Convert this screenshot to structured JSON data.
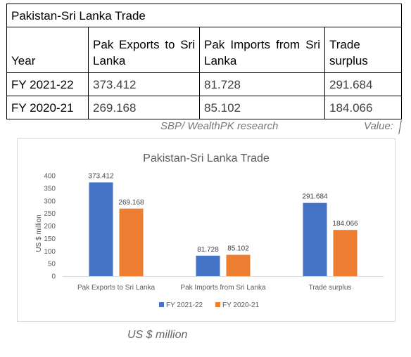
{
  "table": {
    "title": "Pakistan-Sri Lanka Trade",
    "headers": [
      "Year",
      "Pak Exports to Sri Lanka",
      "Pak Imports from Sri Lanka",
      "Trade surplus"
    ],
    "rows": [
      [
        "FY 2021-22",
        "373.412",
        "81.728",
        "291.684"
      ],
      [
        "FY 2020-21",
        "269.168",
        "85.102",
        "184.066"
      ]
    ]
  },
  "source_note": "SBP/ WealthPK research",
  "value_label": "Value:",
  "unit_note": "US $ million",
  "colors": {
    "fy2021_22": "#4472c4",
    "fy2020_21": "#ed7d31"
  },
  "chart_data": {
    "type": "bar",
    "title": "Pakistan-Sri Lanka Trade",
    "categories": [
      "Pak Exports to Sri Lanka",
      "Pak Imports from Sri Lanka",
      "Trade surplus"
    ],
    "series": [
      {
        "name": "FY 2021-22",
        "values": [
          373.412,
          81.728,
          291.684
        ],
        "labels": [
          "373.412",
          "81.728",
          "291.684"
        ]
      },
      {
        "name": "FY 2020-21",
        "values": [
          269.168,
          85.102,
          184.066
        ],
        "labels": [
          "269.168",
          "85.102",
          "184.066"
        ]
      }
    ],
    "xlabel": "",
    "ylabel": "US $ million",
    "ylim": [
      0,
      400
    ],
    "yticks": [
      "0",
      "50",
      "100",
      "150",
      "200",
      "250",
      "300",
      "350",
      "400"
    ],
    "grid": false,
    "legend": "bottom"
  }
}
